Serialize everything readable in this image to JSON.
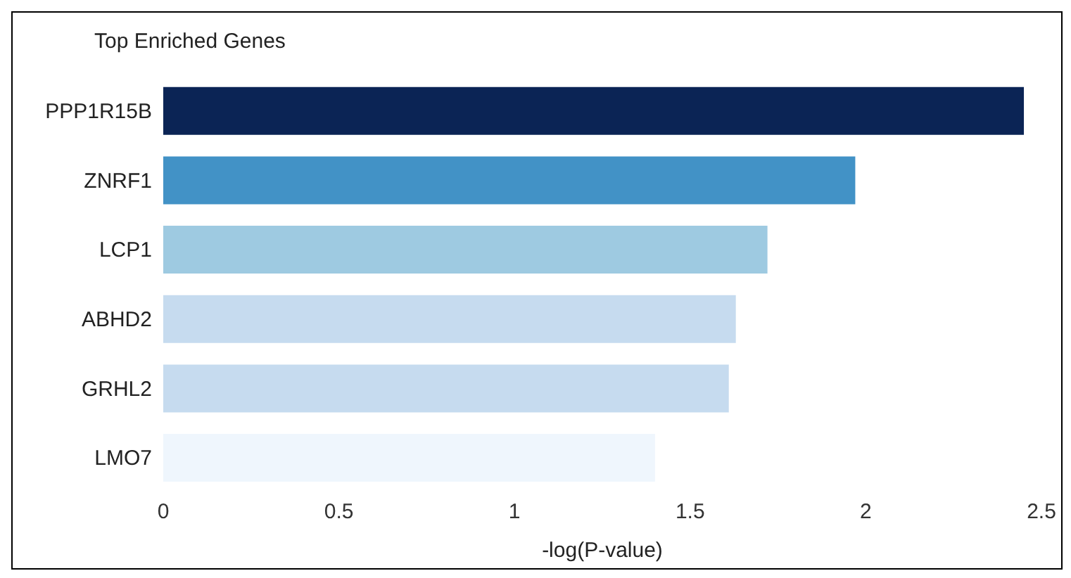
{
  "chart_data": {
    "type": "bar",
    "orientation": "horizontal",
    "title": "Top Enriched Genes",
    "xlabel": "-log(P-value)",
    "categories": [
      "PPP1R15B",
      "ZNRF1",
      "LCP1",
      "ABHD2",
      "GRHL2",
      "LMO7"
    ],
    "values": [
      2.45,
      1.97,
      1.72,
      1.63,
      1.61,
      1.4
    ],
    "colors": [
      "#0b2455",
      "#4292c6",
      "#9ecae1",
      "#c6dbef",
      "#c6dbef",
      "#eff6fd"
    ],
    "xlim": [
      0,
      2.5
    ],
    "xticks": [
      0,
      0.5,
      1,
      1.5,
      2,
      2.5
    ],
    "grid": false,
    "legend": false
  }
}
